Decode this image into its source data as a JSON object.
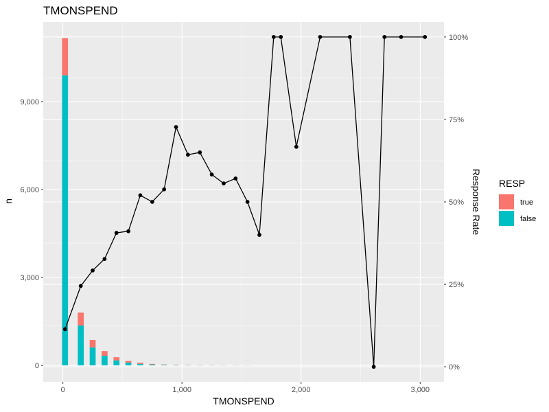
{
  "chart_data": {
    "type": "bar",
    "title": "TMONSPEND",
    "xlabel": "TMONSPEND",
    "ylabel": "n",
    "y2label": "Response Rate",
    "xlim": [
      -165,
      3200
    ],
    "ylim": [
      -560,
      11720
    ],
    "y2lim": [
      -0.0455,
      1.0455
    ],
    "xticks": [
      0,
      1000,
      2000,
      3000
    ],
    "xtick_labels": [
      "0",
      "1,000",
      "2,000",
      "3,000"
    ],
    "yticks": [
      0,
      3000,
      6000,
      9000
    ],
    "ytick_labels": [
      "0",
      "3,000",
      "6,000",
      "9,000"
    ],
    "y2ticks": [
      0,
      0.25,
      0.5,
      0.75,
      1.0
    ],
    "y2tick_labels": [
      "0%",
      "25%",
      "50%",
      "75%",
      "100%"
    ],
    "grid": true,
    "legend": {
      "title": "RESP",
      "position": "right"
    },
    "colors": {
      "true": "#F8766D",
      "false": "#00BFC4",
      "line": "#000000",
      "panel": "#EBEBEB",
      "grid": "#FFFFFF"
    },
    "bar_width": 50,
    "bars": {
      "x": [
        18,
        150,
        250,
        350,
        450,
        550,
        650,
        750,
        850,
        950,
        1050,
        1150,
        1250,
        1350,
        1450,
        1550
      ],
      "series": [
        {
          "name": "false",
          "values": [
            9900,
            1360,
            610,
            330,
            170,
            90,
            50,
            30,
            18,
            10,
            7,
            5,
            4,
            3,
            2,
            2
          ]
        },
        {
          "name": "true",
          "values": [
            1270,
            440,
            260,
            160,
            110,
            60,
            40,
            22,
            12,
            8,
            6,
            4,
            3,
            2,
            2,
            1
          ]
        }
      ]
    },
    "line": {
      "name": "Response Rate",
      "x": [
        18,
        150,
        250,
        350,
        450,
        550,
        650,
        750,
        850,
        950,
        1050,
        1150,
        1250,
        1350,
        1450,
        1550,
        1650,
        1770,
        1830,
        1960,
        2160,
        2410,
        2610,
        2700,
        2840,
        3040
      ],
      "y": [
        0.114,
        0.245,
        0.292,
        0.327,
        0.406,
        0.411,
        0.52,
        0.5,
        0.538,
        0.727,
        0.643,
        0.65,
        0.583,
        0.556,
        0.571,
        0.5,
        0.4,
        1.0,
        1.0,
        0.667,
        1.0,
        1.0,
        0.0,
        1.0,
        1.0,
        1.0
      ]
    }
  }
}
